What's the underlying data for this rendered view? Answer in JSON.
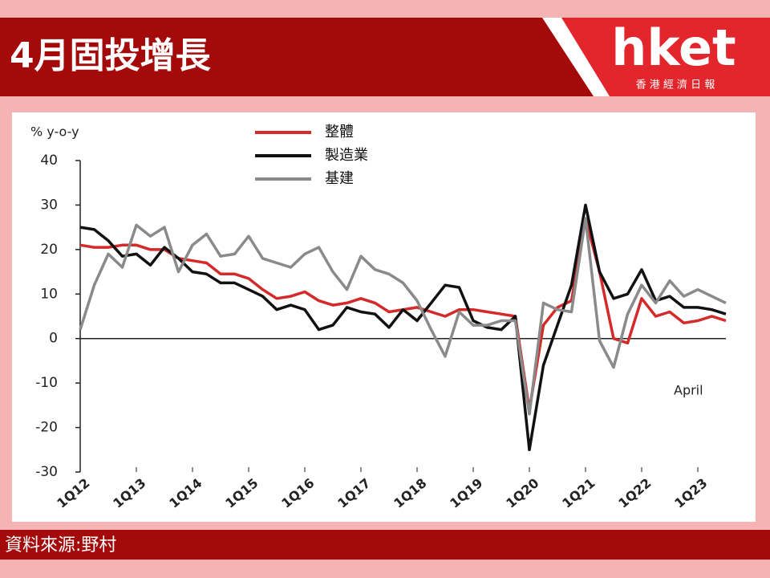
{
  "header": {
    "title": "4月固投增長",
    "logo": "hket",
    "logo_sub": "香 港 經 濟 日 報"
  },
  "footer": {
    "source": "資料來源:野村"
  },
  "chart_data": {
    "type": "line",
    "y_label": "% y-o-y",
    "annotation": "April",
    "categories": [
      "1Q12",
      null,
      null,
      null,
      "1Q13",
      null,
      null,
      null,
      "1Q14",
      null,
      null,
      null,
      "1Q15",
      null,
      null,
      null,
      "1Q16",
      null,
      null,
      null,
      "1Q17",
      null,
      null,
      null,
      "1Q18",
      null,
      null,
      null,
      "1Q19",
      null,
      null,
      null,
      "1Q20",
      null,
      null,
      null,
      "1Q21",
      null,
      null,
      null,
      "1Q22",
      null,
      null,
      null,
      "1Q23",
      null,
      null
    ],
    "series": [
      {
        "name": "整體",
        "color": "#d42a2a",
        "values": [
          21,
          20.5,
          20.5,
          21,
          21,
          20,
          20,
          18,
          17.5,
          17,
          14.5,
          14.5,
          13.5,
          11,
          9,
          9.5,
          10.5,
          8.5,
          7.5,
          8,
          9,
          8,
          6,
          6.5,
          7,
          6,
          5,
          6.5,
          6.5,
          6,
          5.5,
          5,
          -16,
          3,
          7,
          8.5,
          27,
          15,
          0,
          -1,
          9,
          5,
          6,
          3.5,
          4,
          5,
          4
        ]
      },
      {
        "name": "製造業",
        "color": "#111111",
        "values": [
          25,
          24.5,
          22,
          18.5,
          19,
          16.5,
          20.5,
          18,
          15,
          14.5,
          12.5,
          12.5,
          11,
          9.5,
          6.5,
          7.5,
          6.5,
          2,
          3,
          7,
          6,
          5.5,
          2.5,
          6.5,
          4,
          8,
          12,
          11.5,
          4,
          2.5,
          2,
          5,
          -25,
          -6,
          3,
          12,
          30,
          15,
          9,
          10,
          15.5,
          8.5,
          9.5,
          7,
          7,
          6.5,
          5.5
        ]
      },
      {
        "name": "基建",
        "color": "#8a8a8a",
        "values": [
          2,
          12,
          19,
          16,
          25.5,
          23,
          25,
          15,
          21,
          23.5,
          18.5,
          19,
          23,
          18,
          17,
          16,
          19,
          20.5,
          15,
          11,
          18.5,
          15.5,
          14.5,
          12.5,
          8.5,
          2,
          -4,
          6,
          3,
          3,
          4,
          4,
          -17,
          8,
          6.5,
          6,
          27,
          -0.5,
          -6.5,
          5.5,
          12,
          8,
          13,
          9.5,
          11,
          9.5,
          8
        ]
      }
    ],
    "ylim": [
      -30,
      40
    ],
    "yticks": [
      -30,
      -20,
      -10,
      0,
      10,
      20,
      30,
      40
    ]
  }
}
